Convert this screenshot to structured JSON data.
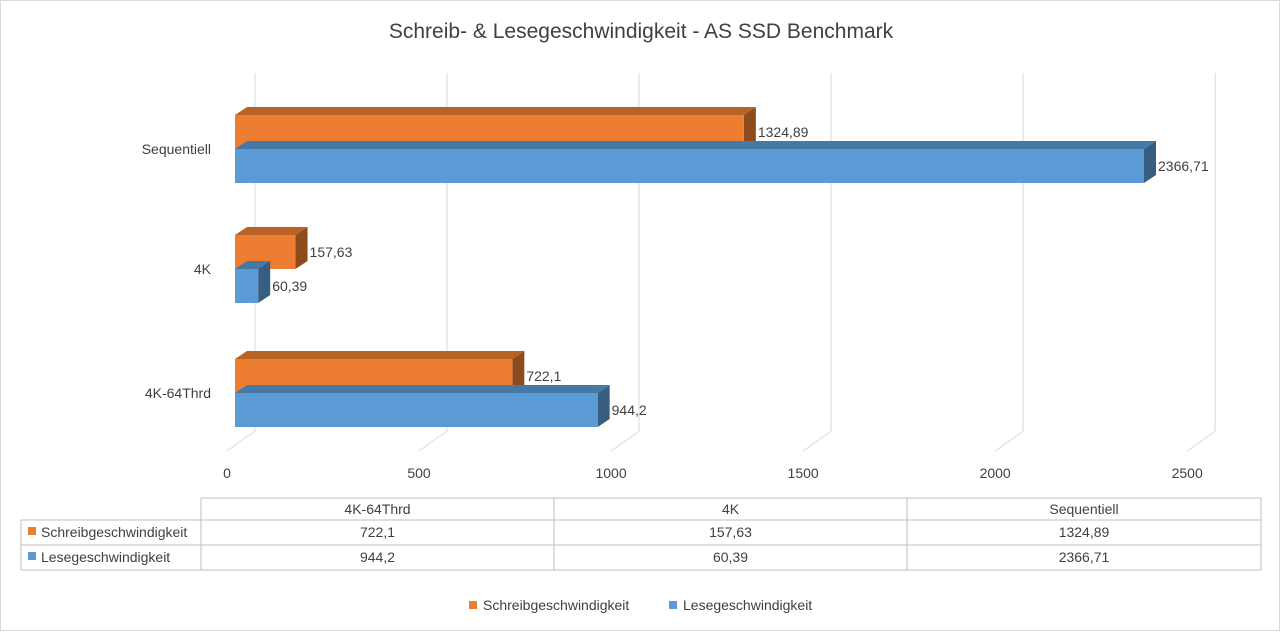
{
  "chart_data": {
    "type": "bar",
    "orientation": "horizontal",
    "style": "3d-clustered",
    "title": "Schreib- & Lesegeschwindigkeit - AS SSD Benchmark",
    "categories": [
      "4K-64Thrd",
      "4K",
      "Sequentiell"
    ],
    "series": [
      {
        "name": "Schreibgeschwindigkeit",
        "color": "#ED7D31",
        "values": [
          722.1,
          157.63,
          1324.89
        ],
        "labels": [
          "722,1",
          "157,63",
          "1324,89"
        ]
      },
      {
        "name": "Lesegeschwindigkeit",
        "color": "#5B9BD5",
        "values": [
          944.2,
          60.39,
          2366.71
        ],
        "labels": [
          "944,2",
          "60,39",
          "2366,71"
        ]
      }
    ],
    "xlim": [
      0,
      2500
    ],
    "xticks": [
      0,
      500,
      1000,
      1500,
      2000,
      2500
    ],
    "xtick_labels": [
      "0",
      "500",
      "1000",
      "1500",
      "2000",
      "2500"
    ],
    "grid": true,
    "legend": "bottom",
    "data_table": true
  }
}
